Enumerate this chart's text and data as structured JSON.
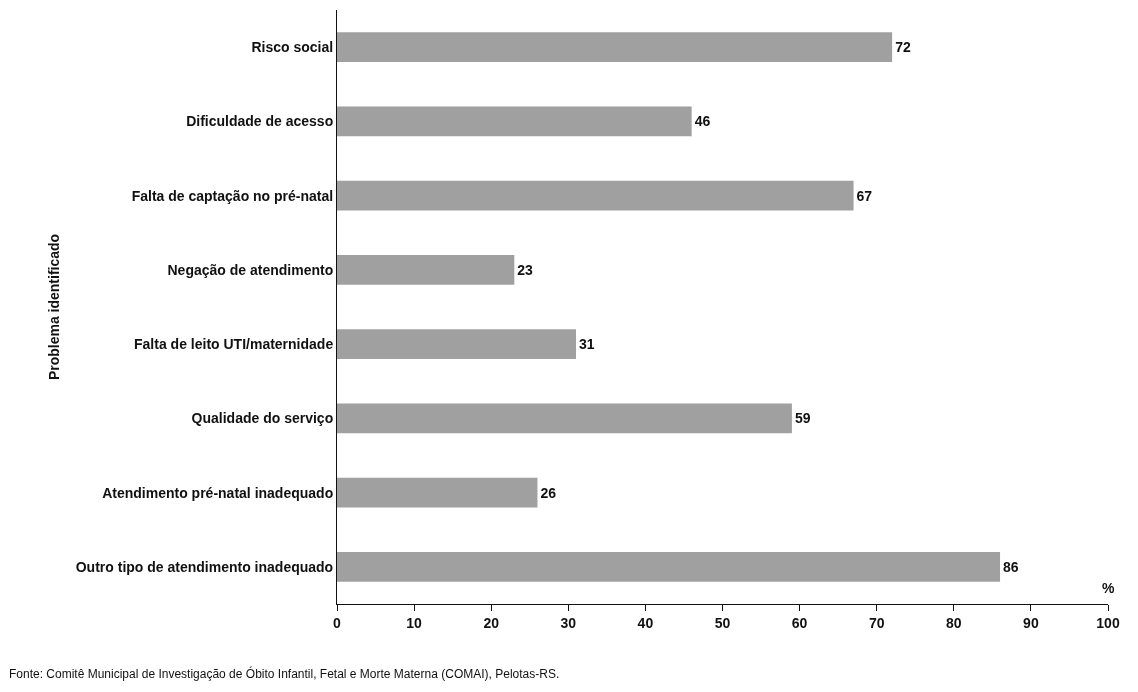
{
  "chart_data": {
    "type": "bar",
    "orientation": "horizontal",
    "ylabel": "Problema identificado",
    "xlabel": "%",
    "categories": [
      "Risco social",
      "Dificuldade de acesso",
      "Falta de captação no pré-natal",
      "Negação de atendimento",
      "Falta de leito UTI/maternidade",
      "Qualidade do serviço",
      "Atendimento pré-natal inadequado",
      "Outro tipo de atendimento inadequado"
    ],
    "values": [
      72,
      46,
      67,
      23,
      31,
      59,
      26,
      86
    ],
    "color": "#a0a0a0",
    "data_labels": true,
    "xlim": [
      0,
      100
    ],
    "xticks": [
      0,
      10,
      20,
      30,
      40,
      50,
      60,
      70,
      80,
      90,
      100
    ],
    "annotations": [
      "Fonte: Comitê Municipal de Investigação de Óbito Infantil, Fetal e Morte Materna (COMAI), Pelotas-RS."
    ]
  }
}
